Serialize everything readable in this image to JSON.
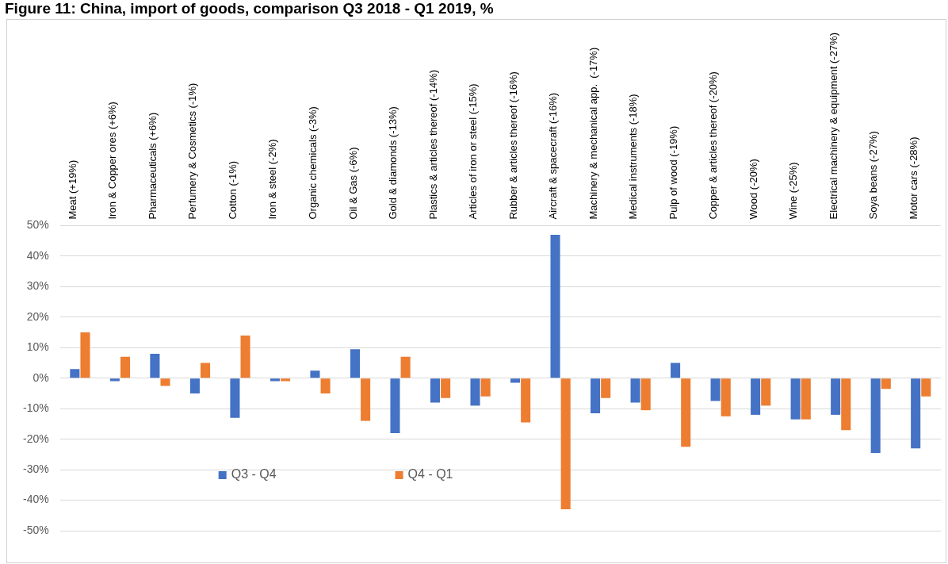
{
  "chart_data": {
    "type": "bar",
    "title": "Figure 11: China, import of goods, comparison Q3 2018 - Q1 2019, %",
    "categories": [
      "Meat (+19%)",
      "Iron & Copper ores (+6%)",
      "Pharmaceuticals (+6%)",
      "Perfumery & Cosmetics (-1%)",
      "Cotton (-1%)",
      "Iron & steel (-2%)",
      "Organic chemicals (-3%)",
      "Oil & Gas (-6%)",
      "Gold & diamonds (-13%)",
      "Plastics & articles thereof (-14%)",
      "Articles of iron or steel (-15%)",
      "Rubber & articles thereof (-16%)",
      "Aircraft & spacecraft (-16%)",
      "Machinery & mechanical app.  (-17%)",
      "Medical instruments (-18%)",
      "Pulp of wood (-19%)",
      "Copper & articles thereof (-20%)",
      "Wood (-20%)",
      "Wine (-25%)",
      "Electrical machinery & equipment (-27%)",
      "Soya beans (-27%)",
      "Motor cars (-28%)"
    ],
    "series": [
      {
        "name": "Q3 - Q4",
        "color": "#4472c4",
        "values": [
          3,
          -1,
          8,
          -5,
          -13,
          -1,
          2.5,
          9.5,
          -18,
          -8,
          -9,
          -1.5,
          47,
          -11.5,
          -8,
          5,
          -7.5,
          -12,
          -13.5,
          -12,
          -24.5,
          -23
        ]
      },
      {
        "name": "Q4 - Q1",
        "color": "#ed7d31",
        "values": [
          15,
          7,
          -2.5,
          5,
          14,
          -1,
          -5,
          -14,
          7,
          -6.5,
          -6,
          -14.5,
          -43,
          -6.5,
          -10.5,
          -22.5,
          -12.5,
          -9,
          -13.5,
          -17,
          -3.5,
          -6
        ]
      }
    ],
    "ylim": [
      -50,
      50
    ],
    "yticks": [
      {
        "value": -50,
        "label": "-50%"
      },
      {
        "value": -40,
        "label": "-40%"
      },
      {
        "value": -30,
        "label": "-30%"
      },
      {
        "value": -20,
        "label": "-20%"
      },
      {
        "value": -10,
        "label": "-10%"
      },
      {
        "value": 0,
        "label": "0%"
      },
      {
        "value": 10,
        "label": "10%"
      },
      {
        "value": 20,
        "label": "20%"
      },
      {
        "value": 30,
        "label": "30%"
      },
      {
        "value": 40,
        "label": "40%"
      },
      {
        "value": 50,
        "label": "50%"
      }
    ],
    "grid": "y",
    "legend": "bottom left"
  }
}
